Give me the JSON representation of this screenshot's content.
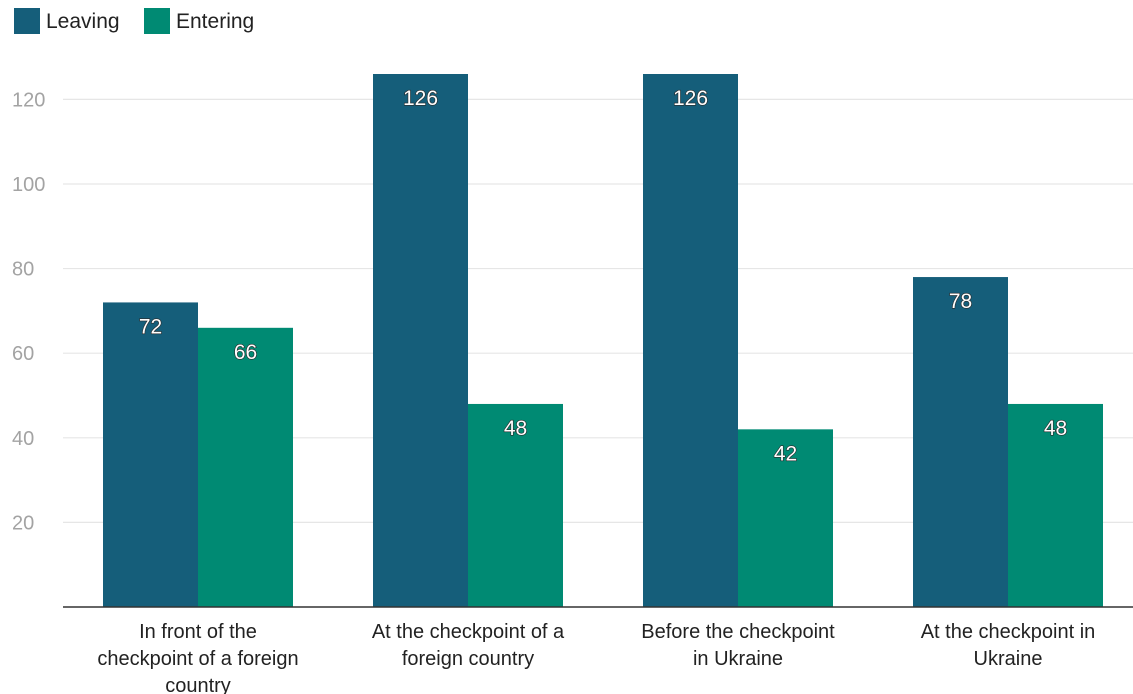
{
  "chart_data": {
    "type": "bar",
    "title": "",
    "xlabel": "",
    "ylabel": "",
    "categories": [
      [
        "In front of the",
        "checkpoint of a foreign",
        "country"
      ],
      [
        "At the checkpoint of a",
        "foreign country"
      ],
      [
        "Before the checkpoint",
        "in Ukraine"
      ],
      [
        "At the checkpoint in",
        "Ukraine"
      ]
    ],
    "series": [
      {
        "name": "Leaving",
        "values": [
          72,
          126,
          126,
          78
        ],
        "color": "#155e7a"
      },
      {
        "name": "Entering",
        "values": [
          66,
          48,
          42,
          48
        ],
        "color": "#008a73"
      }
    ],
    "ylim": [
      0,
      126
    ],
    "yticks": [
      20,
      40,
      60,
      80,
      100,
      120
    ],
    "grid": true,
    "legend": "top-left",
    "data_labels": true
  }
}
